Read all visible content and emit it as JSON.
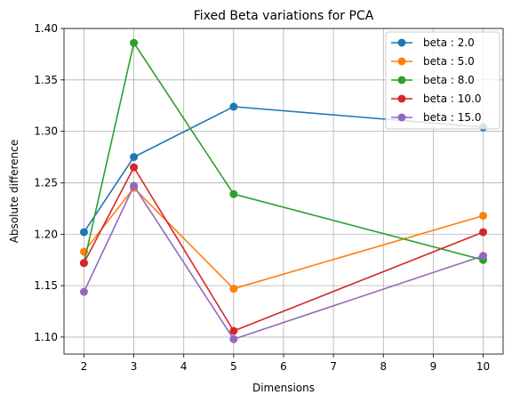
{
  "chart_data": {
    "type": "line",
    "title": "Fixed Beta variations for PCA",
    "xlabel": "Dimensions",
    "ylabel": "Absolute difference",
    "x": [
      2,
      3,
      5,
      10
    ],
    "xlim": [
      1.6,
      10.4
    ],
    "ylim": [
      1.0835,
      1.4
    ],
    "xticks": [
      "2",
      "3",
      "4",
      "5",
      "6",
      "7",
      "8",
      "9",
      "10"
    ],
    "yticks": [
      "1.10",
      "1.15",
      "1.20",
      "1.25",
      "1.30",
      "1.35",
      "1.40"
    ],
    "grid": true,
    "legend_position": "top-right",
    "series": [
      {
        "name": "beta : 2.0",
        "color": "#1f77b4",
        "values": [
          1.202,
          1.275,
          1.324,
          1.304
        ]
      },
      {
        "name": "beta : 5.0",
        "color": "#ff7f0e",
        "values": [
          1.183,
          1.245,
          1.147,
          1.218
        ]
      },
      {
        "name": "beta : 8.0",
        "color": "#2ca02c",
        "values": [
          1.172,
          1.386,
          1.239,
          1.175
        ]
      },
      {
        "name": "beta : 10.0",
        "color": "#d62728",
        "values": [
          1.172,
          1.265,
          1.106,
          1.202
        ]
      },
      {
        "name": "beta : 15.0",
        "color": "#9467bd",
        "values": [
          1.144,
          1.247,
          1.098,
          1.179
        ]
      }
    ]
  }
}
